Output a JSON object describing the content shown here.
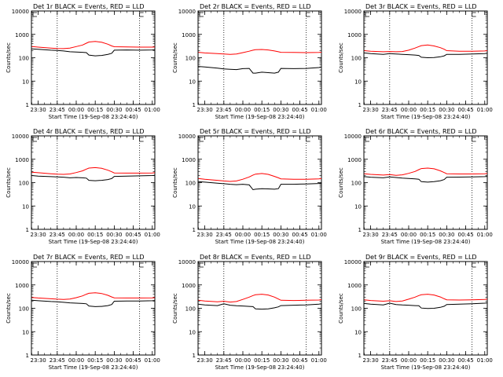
{
  "time_axis_note": "Start Time (19-Sep-08 23:24:40)",
  "series_colors": {
    "events": "#000000",
    "lld": "#ff0000"
  },
  "chart_data": [
    {
      "type": "line",
      "title": "Det 1r BLACK = Events, RED = LLD",
      "xlabel": "Start Time (19-Sep-08 23:24:40)",
      "ylabel": "Counts/sec",
      "scale_y": "log",
      "ylim": [
        1,
        10000
      ],
      "xlim": [
        "23:24:40",
        "01:02:00"
      ],
      "x_ticks": [
        "23:30",
        "23:45",
        "00:00",
        "00:15",
        "00:30",
        "00:45",
        "01:00"
      ],
      "y_ticks": [
        "1",
        "10",
        "100",
        "1000",
        "10000"
      ],
      "grid": "dotted vertical markers at 23:45 and 00:50",
      "x": [
        "23:25",
        "23:30",
        "23:40",
        "23:45",
        "23:50",
        "23:55",
        "00:00",
        "00:05",
        "00:08",
        "00:10",
        "00:15",
        "00:20",
        "00:25",
        "00:28",
        "00:30",
        "00:40",
        "00:50",
        "01:00",
        "01:02"
      ],
      "series": [
        {
          "values": [
            240,
            230,
            210,
            205,
            195,
            180,
            175,
            170,
            165,
            130,
            120,
            125,
            140,
            155,
            210,
            215,
            210,
            215,
            220
          ]
        },
        {
          "values": [
            300,
            285,
            260,
            250,
            245,
            260,
            300,
            350,
            420,
            470,
            500,
            460,
            380,
            320,
            295,
            290,
            285,
            285,
            290
          ]
        }
      ]
    },
    {
      "type": "line",
      "title": "Det 2r BLACK = Events, RED = LLD",
      "xlabel": "Start Time (19-Sep-08 23:24:40)",
      "ylabel": "Counts/sec",
      "scale_y": "log",
      "ylim": [
        1,
        10000
      ],
      "xlim": [
        "23:24:40",
        "01:02:00"
      ],
      "x_ticks": [
        "23:30",
        "23:45",
        "00:00",
        "00:15",
        "00:30",
        "00:45",
        "01:00"
      ],
      "y_ticks": [
        "1",
        "10",
        "100",
        "1000",
        "10000"
      ],
      "grid": "dotted vertical markers at 23:45 and 00:50",
      "x": [
        "23:25",
        "23:30",
        "23:40",
        "23:45",
        "23:50",
        "23:55",
        "00:00",
        "00:05",
        "00:08",
        "00:10",
        "00:15",
        "00:20",
        "00:25",
        "00:28",
        "00:30",
        "00:40",
        "00:50",
        "01:00",
        "01:02"
      ],
      "series": [
        {
          "values": [
            42,
            40,
            36,
            33,
            32,
            31,
            34,
            35,
            22,
            22,
            24,
            23,
            22,
            24,
            35,
            34,
            35,
            38,
            40
          ]
        },
        {
          "values": [
            170,
            160,
            150,
            145,
            140,
            145,
            165,
            190,
            210,
            220,
            225,
            215,
            195,
            180,
            170,
            168,
            165,
            168,
            170
          ]
        }
      ]
    },
    {
      "type": "line",
      "title": "Det 3r BLACK = Events, RED = LLD",
      "xlabel": "Start Time (19-Sep-08 23:24:40)",
      "ylabel": "Counts/sec",
      "scale_y": "log",
      "ylim": [
        1,
        10000
      ],
      "xlim": [
        "23:24:40",
        "01:02:00"
      ],
      "x_ticks": [
        "23:30",
        "23:45",
        "00:00",
        "00:15",
        "00:30",
        "00:45",
        "01:00"
      ],
      "y_ticks": [
        "1",
        "10",
        "100",
        "1000",
        "10000"
      ],
      "grid": "dotted vertical markers at 23:45 and 00:50",
      "x": [
        "23:25",
        "23:30",
        "23:40",
        "23:45",
        "23:50",
        "23:55",
        "00:00",
        "00:05",
        "00:08",
        "00:10",
        "00:15",
        "00:20",
        "00:25",
        "00:28",
        "00:30",
        "00:40",
        "00:50",
        "01:00",
        "01:02"
      ],
      "series": [
        {
          "values": [
            160,
            150,
            140,
            150,
            145,
            140,
            135,
            130,
            125,
            105,
            100,
            102,
            110,
            120,
            140,
            140,
            145,
            150,
            155
          ]
        },
        {
          "values": [
            200,
            190,
            180,
            185,
            180,
            185,
            210,
            260,
            300,
            330,
            350,
            320,
            270,
            230,
            200,
            190,
            190,
            195,
            200
          ]
        }
      ]
    },
    {
      "type": "line",
      "title": "Det 4r BLACK = Events, RED = LLD",
      "xlabel": "Start Time (19-Sep-08 23:24:40)",
      "ylabel": "Counts/sec",
      "scale_y": "log",
      "ylim": [
        1,
        10000
      ],
      "xlim": [
        "23:24:40",
        "01:02:00"
      ],
      "x_ticks": [
        "23:30",
        "23:45",
        "00:00",
        "00:15",
        "00:30",
        "00:45",
        "01:00"
      ],
      "y_ticks": [
        "1",
        "10",
        "100",
        "1000",
        "10000"
      ],
      "grid": "dotted vertical markers at 23:45 and 00:50",
      "x": [
        "23:25",
        "23:30",
        "23:40",
        "23:45",
        "23:50",
        "23:55",
        "00:00",
        "00:05",
        "00:08",
        "00:10",
        "00:15",
        "00:20",
        "00:25",
        "00:28",
        "00:30",
        "00:40",
        "00:50",
        "01:00",
        "01:02"
      ],
      "series": [
        {
          "values": [
            200,
            190,
            180,
            175,
            170,
            160,
            165,
            160,
            155,
            125,
            120,
            125,
            135,
            150,
            185,
            190,
            195,
            200,
            205
          ]
        },
        {
          "values": [
            280,
            265,
            240,
            230,
            225,
            235,
            270,
            320,
            380,
            420,
            440,
            410,
            340,
            290,
            260,
            255,
            255,
            260,
            265
          ]
        }
      ]
    },
    {
      "type": "line",
      "title": "Det 5r BLACK = Events, RED = LLD",
      "xlabel": "Start Time (19-Sep-08 23:24:40)",
      "ylabel": "Counts/sec",
      "scale_y": "log",
      "ylim": [
        1,
        10000
      ],
      "xlim": [
        "23:24:40",
        "01:02:00"
      ],
      "x_ticks": [
        "23:30",
        "23:45",
        "00:00",
        "00:15",
        "00:30",
        "00:45",
        "01:00"
      ],
      "y_ticks": [
        "1",
        "10",
        "100",
        "1000",
        "10000"
      ],
      "grid": "dotted vertical markers at 23:45 and 00:50",
      "x": [
        "23:25",
        "23:30",
        "23:40",
        "23:45",
        "23:50",
        "23:55",
        "00:00",
        "00:05",
        "00:08",
        "00:10",
        "00:15",
        "00:20",
        "00:25",
        "00:28",
        "00:30",
        "00:40",
        "00:50",
        "01:00",
        "01:02"
      ],
      "series": [
        {
          "values": [
            110,
            105,
            95,
            90,
            85,
            82,
            85,
            80,
            50,
            52,
            55,
            54,
            52,
            55,
            85,
            85,
            88,
            92,
            95
          ]
        },
        {
          "values": [
            150,
            140,
            125,
            118,
            112,
            118,
            140,
            175,
            210,
            230,
            245,
            225,
            185,
            160,
            145,
            140,
            140,
            145,
            150
          ]
        }
      ]
    },
    {
      "type": "line",
      "title": "Det 6r BLACK = Events, RED = LLD",
      "xlabel": "Start Time (19-Sep-08 23:24:40)",
      "ylabel": "Counts/sec",
      "scale_y": "log",
      "ylim": [
        1,
        10000
      ],
      "xlim": [
        "23:24:40",
        "01:02:00"
      ],
      "x_ticks": [
        "23:30",
        "23:45",
        "00:00",
        "00:15",
        "00:30",
        "00:45",
        "01:00"
      ],
      "y_ticks": [
        "1",
        "10",
        "100",
        "1000",
        "10000"
      ],
      "grid": "dotted vertical markers at 23:45 and 00:50",
      "x": [
        "23:25",
        "23:30",
        "23:40",
        "23:45",
        "23:50",
        "23:55",
        "00:00",
        "00:05",
        "00:08",
        "00:10",
        "00:15",
        "00:20",
        "00:25",
        "00:28",
        "00:30",
        "00:40",
        "00:50",
        "01:00",
        "01:02"
      ],
      "series": [
        {
          "values": [
            180,
            170,
            160,
            175,
            165,
            155,
            150,
            145,
            140,
            110,
            105,
            110,
            120,
            135,
            170,
            172,
            175,
            180,
            185
          ]
        },
        {
          "values": [
            240,
            225,
            210,
            220,
            205,
            215,
            250,
            300,
            360,
            400,
            420,
            390,
            320,
            270,
            240,
            235,
            235,
            240,
            245
          ]
        }
      ]
    },
    {
      "type": "line",
      "title": "Det 7r BLACK = Events, RED = LLD",
      "xlabel": "Start Time (19-Sep-08 23:24:40)",
      "ylabel": "Counts/sec",
      "scale_y": "log",
      "ylim": [
        1,
        10000
      ],
      "xlim": [
        "23:24:40",
        "01:02:00"
      ],
      "x_ticks": [
        "23:30",
        "23:45",
        "00:00",
        "00:15",
        "00:30",
        "00:45",
        "01:00"
      ],
      "y_ticks": [
        "1",
        "10",
        "100",
        "1000",
        "10000"
      ],
      "grid": "dotted vertical markers at 23:45 and 00:50",
      "x": [
        "23:25",
        "23:30",
        "23:40",
        "23:45",
        "23:50",
        "23:55",
        "00:00",
        "00:05",
        "00:08",
        "00:10",
        "00:15",
        "00:20",
        "00:25",
        "00:28",
        "00:30",
        "00:40",
        "00:50",
        "01:00",
        "01:02"
      ],
      "series": [
        {
          "values": [
            220,
            210,
            195,
            190,
            180,
            170,
            165,
            160,
            155,
            125,
            118,
            120,
            130,
            145,
            200,
            205,
            205,
            210,
            215
          ]
        },
        {
          "values": [
            290,
            275,
            255,
            245,
            240,
            250,
            285,
            340,
            400,
            440,
            460,
            430,
            360,
            305,
            280,
            275,
            275,
            280,
            285
          ]
        }
      ]
    },
    {
      "type": "line",
      "title": "Det 8r BLACK = Events, RED = LLD",
      "xlabel": "Start Time (19-Sep-08 23:24:40)",
      "ylabel": "Counts/sec",
      "scale_y": "log",
      "ylim": [
        1,
        10000
      ],
      "xlim": [
        "23:24:40",
        "01:02:00"
      ],
      "x_ticks": [
        "23:30",
        "23:45",
        "00:00",
        "00:15",
        "00:30",
        "00:45",
        "01:00"
      ],
      "y_ticks": [
        "1",
        "10",
        "100",
        "1000",
        "10000"
      ],
      "grid": "dotted vertical markers at 23:45 and 00:50",
      "x": [
        "23:25",
        "23:30",
        "23:40",
        "23:45",
        "23:50",
        "23:55",
        "00:00",
        "00:05",
        "00:08",
        "00:10",
        "00:15",
        "00:20",
        "00:25",
        "00:28",
        "00:30",
        "00:40",
        "00:50",
        "01:00",
        "01:02"
      ],
      "series": [
        {
          "values": [
            150,
            140,
            130,
            155,
            135,
            128,
            125,
            120,
            118,
            95,
            92,
            95,
            105,
            115,
            130,
            135,
            140,
            150,
            155
          ]
        },
        {
          "values": [
            220,
            205,
            190,
            200,
            185,
            195,
            240,
            300,
            350,
            380,
            400,
            370,
            300,
            250,
            220,
            215,
            220,
            225,
            235
          ]
        }
      ]
    },
    {
      "type": "line",
      "title": "Det 9r BLACK = Events, RED = LLD",
      "xlabel": "Start Time (19-Sep-08 23:24:40)",
      "ylabel": "Counts/sec",
      "scale_y": "log",
      "ylim": [
        1,
        10000
      ],
      "xlim": [
        "23:24:40",
        "01:02:00"
      ],
      "x_ticks": [
        "23:30",
        "23:45",
        "00:00",
        "00:15",
        "00:30",
        "00:45",
        "01:00"
      ],
      "y_ticks": [
        "1",
        "10",
        "100",
        "1000",
        "10000"
      ],
      "grid": "dotted vertical markers at 23:45 and 00:50",
      "x": [
        "23:25",
        "23:30",
        "23:40",
        "23:45",
        "23:50",
        "23:55",
        "00:00",
        "00:05",
        "00:08",
        "00:10",
        "00:15",
        "00:20",
        "00:25",
        "00:28",
        "00:30",
        "00:40",
        "00:50",
        "01:00",
        "01:02"
      ],
      "series": [
        {
          "values": [
            160,
            150,
            140,
            165,
            145,
            138,
            135,
            130,
            128,
            102,
            98,
            100,
            110,
            122,
            145,
            150,
            155,
            165,
            170
          ]
        },
        {
          "values": [
            230,
            215,
            200,
            210,
            195,
            205,
            245,
            300,
            350,
            380,
            400,
            370,
            305,
            255,
            230,
            225,
            230,
            240,
            250
          ]
        }
      ]
    }
  ]
}
